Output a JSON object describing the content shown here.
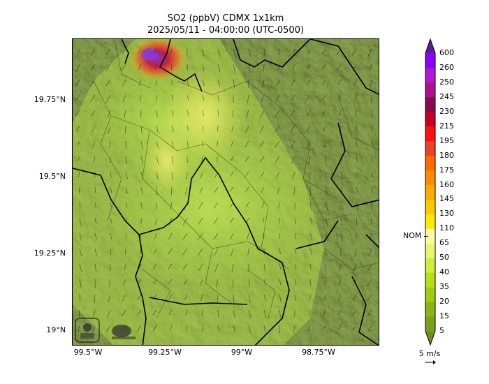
{
  "title": {
    "line1": "SO2 (ppbV) CDMX 1x1km",
    "line2": "2025/05/11 - 04:00:00 (UTC-0500)"
  },
  "axes": {
    "lat_ticks": [
      "19.75°N",
      "19.5°N",
      "19.25°N",
      "19°N"
    ],
    "lon_ticks": [
      "99.5°W",
      "99.25°W",
      "99°W",
      "98.75°W"
    ]
  },
  "colorbar": {
    "levels": [
      "5",
      "15",
      "20",
      "35",
      "40",
      "50",
      "65",
      "110",
      "130",
      "145",
      "160",
      "175",
      "180",
      "195",
      "215",
      "230",
      "245",
      "250",
      "260",
      "600"
    ],
    "colors": [
      "#6f8f1e",
      "#7aa01a",
      "#88b515",
      "#9ccd10",
      "#b4e014",
      "#cfee3a",
      "#e6f870",
      "#fdfd9e",
      "#ffea00",
      "#ffc800",
      "#ffa800",
      "#ff8a00",
      "#ff6a00",
      "#f04020",
      "#ff1010",
      "#c8001e",
      "#8a0a50",
      "#b0108a",
      "#b018d8",
      "#8800ff",
      "#5c1aa0"
    ],
    "nom_label": "NOM"
  },
  "wind": {
    "label": "5 m/s"
  },
  "icons": [
    "logo-secretaria",
    "logo-sedema"
  ]
}
